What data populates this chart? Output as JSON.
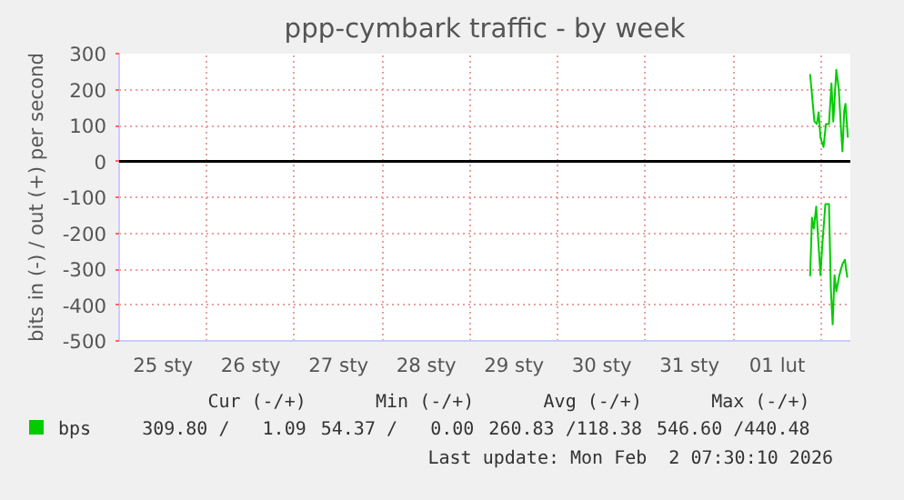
{
  "chart_data": {
    "type": "line",
    "title": "ppp-cymbark traffic - by week",
    "ylabel": "bits in (-) / out (+) per second",
    "series": [
      {
        "name": "bps",
        "color": "#00cc00",
        "x": [
          "2026-02-01T21:00",
          "2026-02-01T22:10",
          "2026-02-01T22:50",
          "2026-02-01T23:20",
          "2026-02-01T23:50",
          "2026-02-02T00:40",
          "2026-02-02T01:20",
          "2026-02-02T02:10",
          "2026-02-02T02:50",
          "2026-02-02T03:20",
          "2026-02-02T04:10",
          "2026-02-02T04:50",
          "2026-02-02T05:30",
          "2026-02-02T05:50",
          "2026-02-02T06:20",
          "2026-02-02T06:40",
          "2026-02-02T07:20"
        ],
        "values": [
          243,
          111,
          104,
          137,
          66,
          40,
          104,
          104,
          217,
          111,
          255,
          202,
          81,
          28,
          142,
          160,
          66
        ]
      },
      {
        "color": "#00cc00",
        "x": [
          "2026-02-01T21:00",
          "2026-02-01T21:30",
          "2026-02-01T22:00",
          "2026-02-01T22:40",
          "2026-02-01T23:10",
          "2026-02-01T23:50",
          "2026-02-02T00:20",
          "2026-02-02T01:10",
          "2026-02-02T02:10",
          "2026-02-02T02:40",
          "2026-02-02T03:10",
          "2026-02-02T03:40",
          "2026-02-02T04:10",
          "2026-02-02T05:00",
          "2026-02-02T05:50",
          "2026-02-02T06:30",
          "2026-02-02T07:10"
        ],
        "values": [
          -320,
          -157,
          -187,
          -126,
          -210,
          -317,
          -233,
          -119,
          -119,
          -355,
          -454,
          -317,
          -362,
          -317,
          -286,
          -274,
          -324
        ]
      }
    ],
    "xlim": [
      "2026-01-25T00:00",
      "2026-02-02T08:00"
    ],
    "xticks": [
      {
        "value": "2026-01-25T12:00",
        "label": "25 sty"
      },
      {
        "value": "2026-01-26T00:00",
        "label": null
      },
      {
        "value": "2026-01-26T12:00",
        "label": "26 sty"
      },
      {
        "value": "2026-01-27T00:00",
        "label": null
      },
      {
        "value": "2026-01-27T12:00",
        "label": "27 sty"
      },
      {
        "value": "2026-01-28T00:00",
        "label": null
      },
      {
        "value": "2026-01-28T12:00",
        "label": "28 sty"
      },
      {
        "value": "2026-01-29T00:00",
        "label": null
      },
      {
        "value": "2026-01-29T12:00",
        "label": "29 sty"
      },
      {
        "value": "2026-01-30T00:00",
        "label": null
      },
      {
        "value": "2026-01-30T12:00",
        "label": "30 sty"
      },
      {
        "value": "2026-01-31T00:00",
        "label": null
      },
      {
        "value": "2026-01-31T12:00",
        "label": "31 sty"
      },
      {
        "value": "2026-02-01T00:00",
        "label": null
      },
      {
        "value": "2026-02-01T12:00",
        "label": "01 lut"
      },
      {
        "value": "2026-02-02T00:00",
        "label": null
      }
    ],
    "ylim": [
      -500,
      300
    ],
    "yticks": [
      -500,
      -400,
      -300,
      -200,
      -100,
      0,
      100,
      200,
      300
    ],
    "ref_lines": [
      {
        "axis": "y",
        "value": 0,
        "color": "#000000"
      }
    ],
    "grid": true,
    "legend": "bottom",
    "annotations": [
      "Cur (-/+)",
      "Min (-/+)",
      "Avg (-/+)",
      "Max (-/+)",
      "309.80 /   1.09",
      "54.37 /   0.00",
      "260.83 /118.38",
      "546.60 /440.48",
      "Last update: Mon Feb  2 07:30:10 2026"
    ]
  }
}
